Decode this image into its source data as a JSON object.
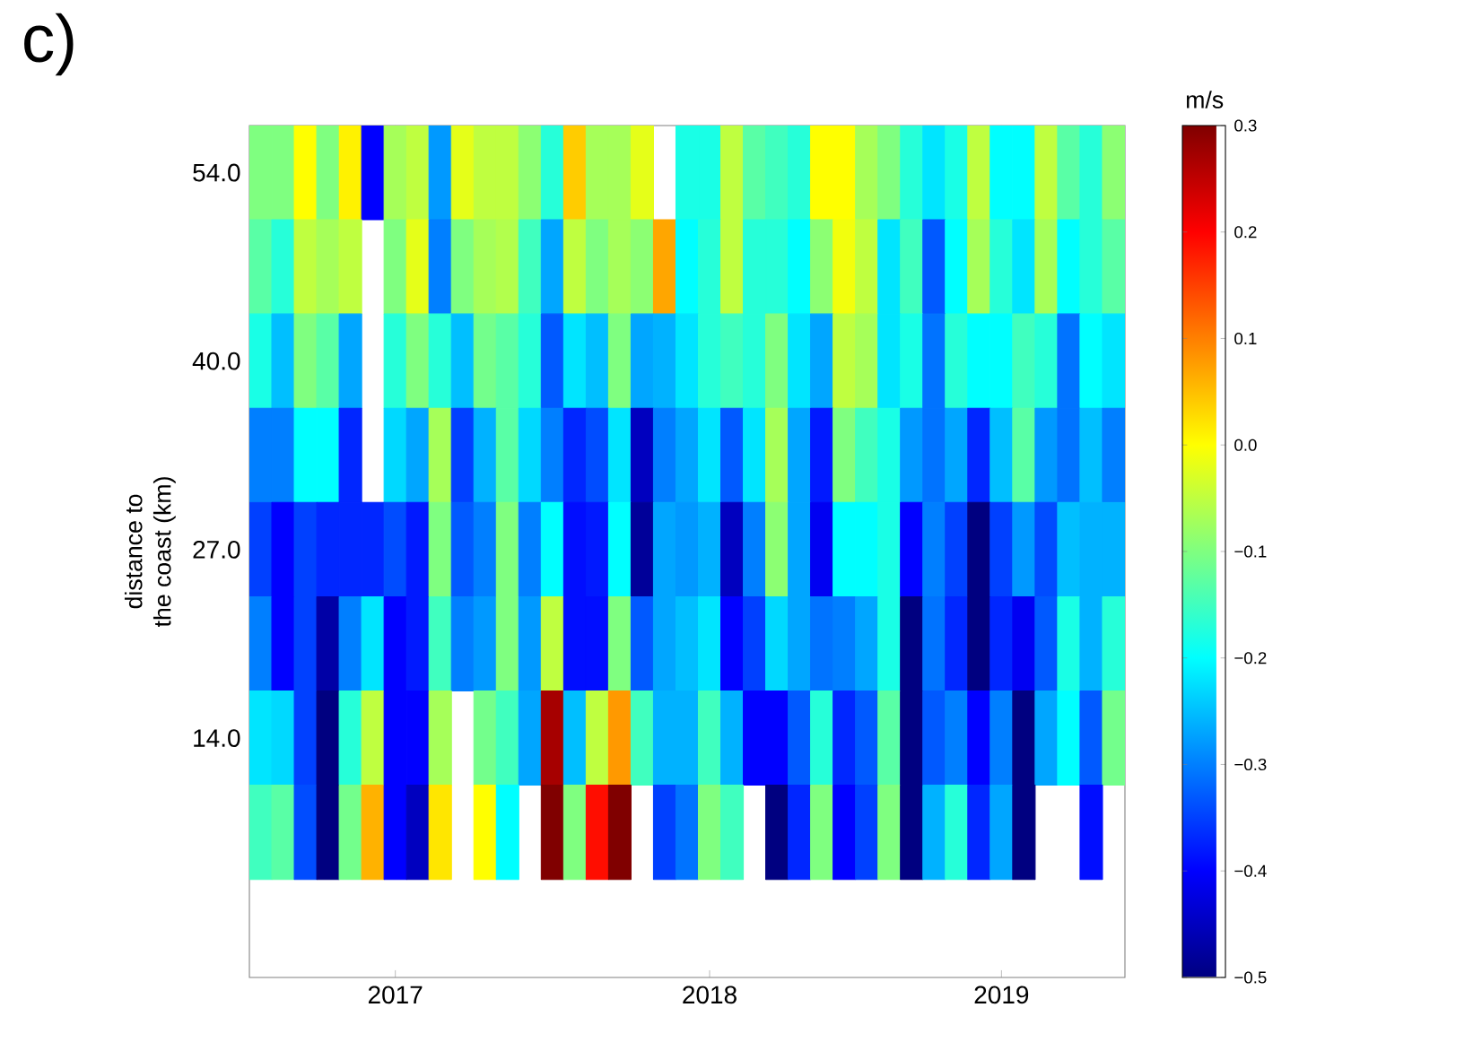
{
  "chart_data": {
    "type": "heatmap",
    "title": "c)",
    "ylabel": "distance to\nthe coast (km)",
    "clabel": "m/s",
    "categories": [
      null,
      null,
      null,
      null,
      null,
      null,
      "2017",
      null,
      null,
      null,
      null,
      null,
      null,
      null,
      null,
      null,
      null,
      null,
      null,
      null,
      "2018",
      null,
      null,
      null,
      null,
      null,
      null,
      null,
      null,
      null,
      null,
      null,
      null,
      "2019",
      null,
      null,
      null,
      null,
      null
    ],
    "y_categories": [
      "54.0",
      null,
      "40.0",
      null,
      "27.0",
      null,
      "14.0",
      null
    ],
    "cells": [
      [
        -0.1,
        -0.1,
        0.0,
        -0.1,
        0.01,
        -0.4,
        -0.07,
        -0.05,
        -0.28,
        -0.02,
        -0.05,
        -0.05,
        -0.09,
        -0.17,
        0.04,
        -0.07,
        -0.07,
        -0.02,
        null,
        -0.18,
        -0.18,
        -0.05,
        -0.13,
        -0.15,
        -0.17,
        0.0,
        0.0,
        -0.07,
        -0.1,
        -0.17,
        -0.22,
        -0.18,
        -0.05,
        -0.2,
        -0.2,
        -0.05,
        -0.13,
        -0.17,
        -0.09
      ],
      [
        -0.13,
        -0.17,
        -0.05,
        -0.07,
        -0.05,
        null,
        -0.1,
        -0.02,
        -0.3,
        -0.1,
        -0.07,
        -0.06,
        -0.15,
        -0.27,
        -0.05,
        -0.1,
        -0.07,
        -0.09,
        0.07,
        -0.2,
        -0.17,
        -0.05,
        -0.17,
        -0.17,
        -0.2,
        -0.09,
        -0.01,
        -0.05,
        -0.22,
        -0.15,
        -0.33,
        -0.2,
        -0.07,
        -0.17,
        -0.22,
        -0.07,
        -0.2,
        -0.17,
        -0.13
      ],
      [
        -0.18,
        -0.25,
        -0.1,
        -0.13,
        -0.27,
        null,
        -0.17,
        -0.1,
        -0.17,
        -0.25,
        -0.11,
        -0.13,
        -0.17,
        -0.33,
        -0.22,
        -0.25,
        -0.1,
        -0.27,
        -0.26,
        -0.22,
        -0.17,
        -0.15,
        -0.17,
        -0.1,
        -0.22,
        -0.27,
        -0.05,
        -0.07,
        -0.22,
        -0.18,
        -0.31,
        -0.17,
        -0.2,
        -0.2,
        -0.15,
        -0.17,
        -0.31,
        -0.2,
        -0.22
      ],
      [
        -0.3,
        -0.3,
        -0.2,
        -0.2,
        -0.37,
        null,
        -0.23,
        -0.27,
        -0.07,
        -0.35,
        -0.26,
        -0.13,
        -0.23,
        -0.3,
        -0.37,
        -0.34,
        -0.22,
        -0.45,
        -0.3,
        -0.27,
        -0.22,
        -0.33,
        -0.22,
        -0.07,
        -0.27,
        -0.38,
        -0.1,
        -0.15,
        -0.18,
        -0.28,
        -0.31,
        -0.27,
        -0.37,
        -0.25,
        -0.13,
        -0.28,
        -0.31,
        -0.25,
        -0.3
      ],
      [
        -0.35,
        -0.4,
        -0.35,
        -0.37,
        -0.37,
        -0.37,
        -0.34,
        -0.38,
        -0.1,
        -0.33,
        -0.3,
        -0.1,
        -0.3,
        -0.2,
        -0.39,
        -0.38,
        -0.2,
        -0.48,
        -0.27,
        -0.28,
        -0.26,
        -0.45,
        -0.3,
        -0.09,
        -0.27,
        -0.41,
        -0.2,
        -0.2,
        -0.18,
        -0.4,
        -0.3,
        -0.35,
        -0.5,
        -0.35,
        -0.28,
        -0.34,
        -0.25,
        -0.26,
        -0.26
      ],
      [
        -0.3,
        -0.4,
        -0.35,
        -0.47,
        -0.3,
        -0.22,
        -0.4,
        -0.38,
        -0.15,
        -0.3,
        -0.28,
        -0.1,
        -0.28,
        -0.05,
        -0.39,
        -0.39,
        -0.1,
        -0.33,
        -0.27,
        -0.25,
        -0.22,
        -0.4,
        -0.35,
        -0.23,
        -0.27,
        -0.31,
        -0.3,
        -0.27,
        -0.18,
        -0.5,
        -0.31,
        -0.37,
        -0.5,
        -0.37,
        -0.41,
        -0.33,
        -0.18,
        -0.26,
        -0.17
      ],
      [
        -0.22,
        -0.23,
        -0.35,
        -0.5,
        -0.17,
        -0.05,
        -0.4,
        -0.4,
        -0.07,
        null,
        -0.11,
        -0.15,
        -0.27,
        0.27,
        -0.25,
        -0.05,
        0.08,
        -0.15,
        -0.26,
        -0.26,
        -0.15,
        -0.26,
        -0.4,
        -0.4,
        -0.33,
        -0.17,
        -0.37,
        -0.33,
        -0.13,
        -0.5,
        -0.33,
        -0.3,
        -0.4,
        -0.3,
        -0.5,
        -0.27,
        -0.2,
        -0.33,
        -0.11
      ],
      [
        -0.15,
        -0.13,
        -0.34,
        -0.5,
        -0.11,
        0.06,
        -0.4,
        -0.45,
        0.02,
        null,
        0.0,
        -0.2,
        null,
        0.3,
        -0.1,
        0.19,
        0.3,
        null,
        -0.35,
        -0.31,
        -0.1,
        -0.15,
        null,
        -0.5,
        -0.37,
        -0.1,
        -0.4,
        -0.35,
        -0.1,
        -0.5,
        -0.26,
        -0.17,
        -0.37,
        -0.27,
        -0.5,
        null,
        null,
        -0.39,
        null
      ]
    ],
    "clim": [
      -0.5,
      0.3
    ],
    "cticks": [
      {
        "value": -0.5,
        "label": "−0.5"
      },
      {
        "value": -0.4,
        "label": "−0.4"
      },
      {
        "value": -0.3,
        "label": "−0.3"
      },
      {
        "value": -0.2,
        "label": "−0.2"
      },
      {
        "value": -0.1,
        "label": "−0.1"
      },
      {
        "value": 0.0,
        "label": "0.0"
      },
      0.1,
      0.2,
      0.3
    ]
  }
}
